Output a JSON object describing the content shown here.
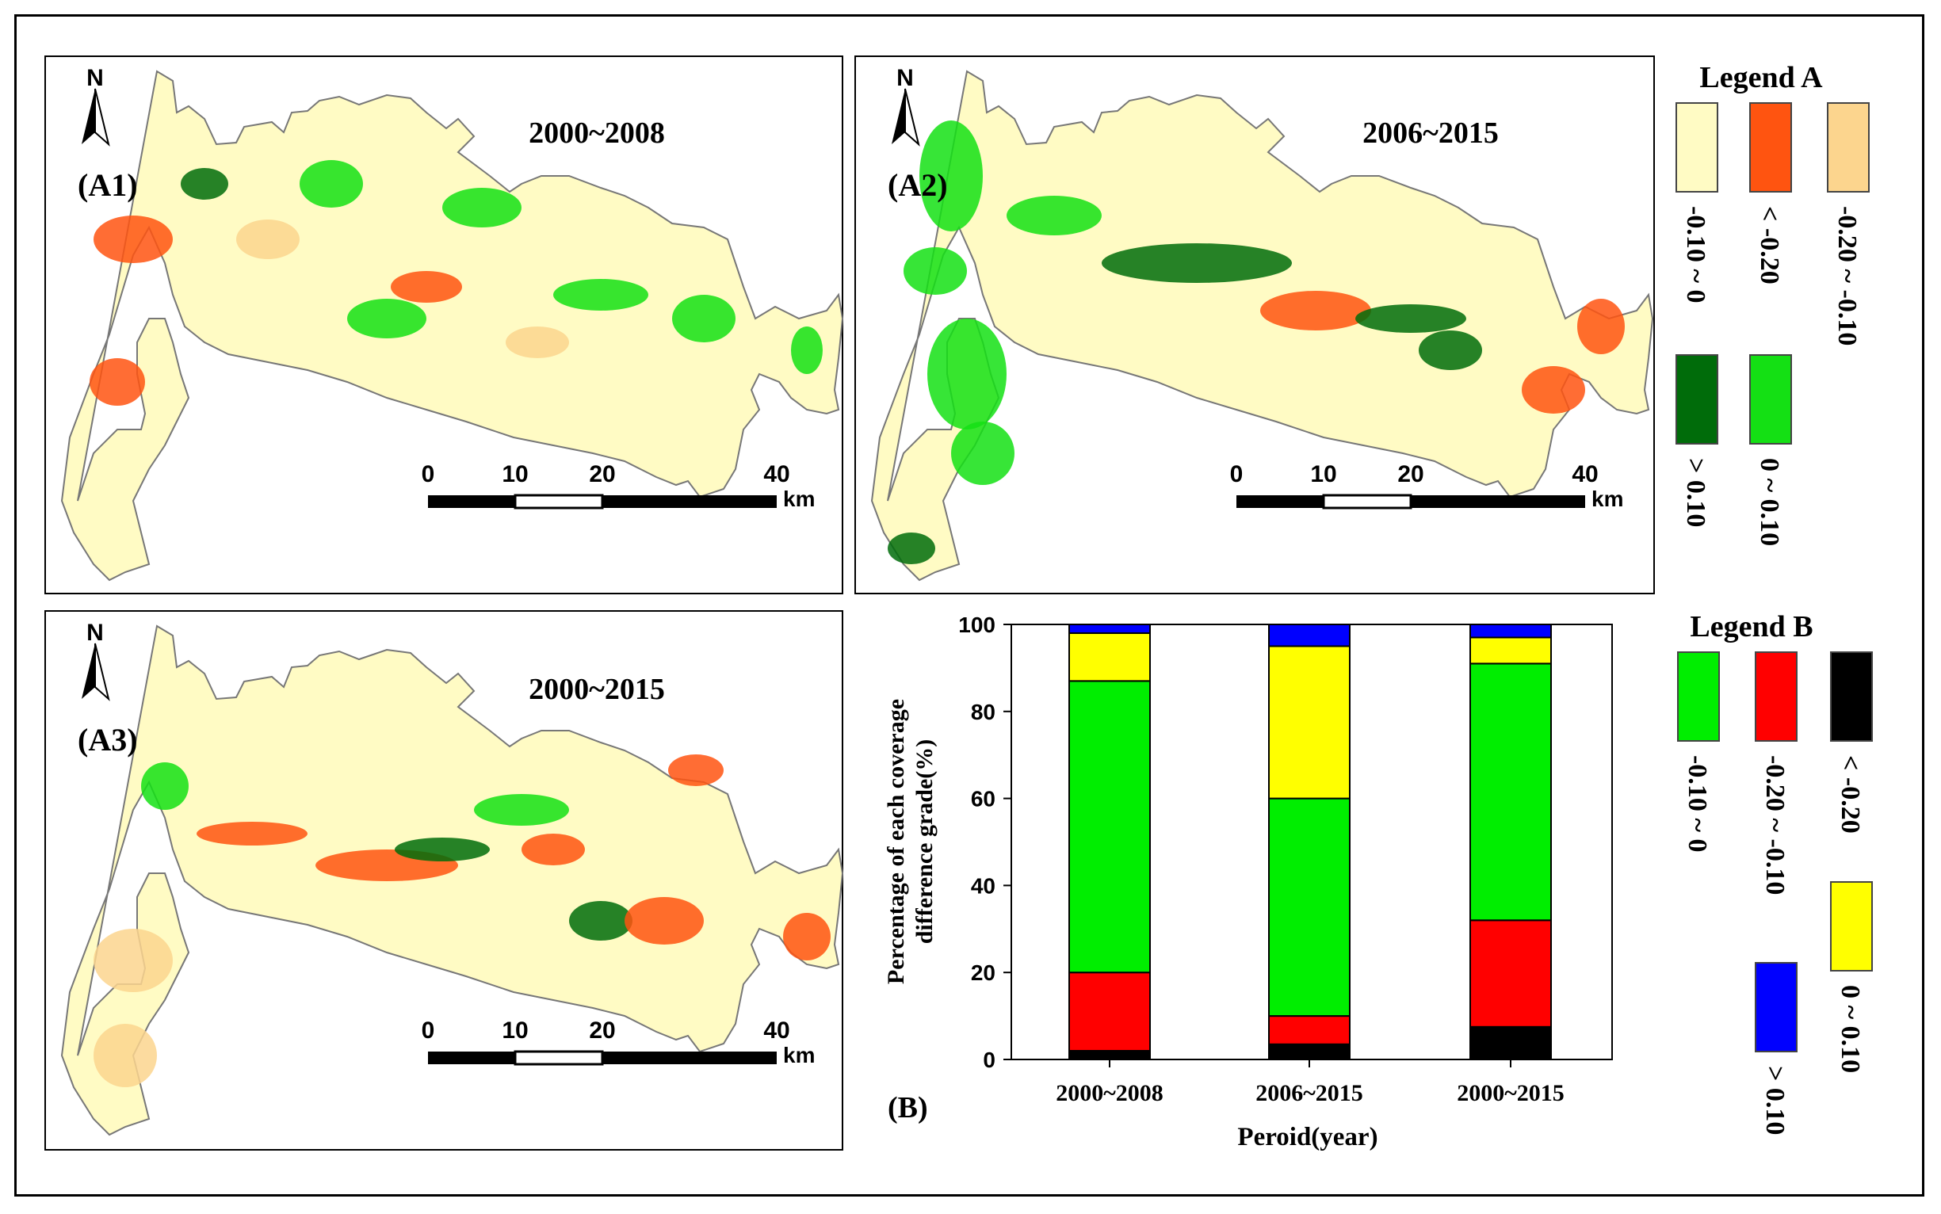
{
  "maps": [
    {
      "label": "(A1)",
      "period": "2000~2008"
    },
    {
      "label": "(A2)",
      "period": "2006~2015"
    },
    {
      "label": "(A3)",
      "period": "2000~2015"
    }
  ],
  "north_label": "N",
  "scale": {
    "ticks": [
      "0",
      "10",
      "20",
      "40"
    ],
    "unit": "km"
  },
  "legend_a": {
    "title": "Legend A",
    "items": [
      {
        "label": "-0.10 ~ 0",
        "color": "#FFFBC4"
      },
      {
        "label": "< -0.20",
        "color": "#FF5410"
      },
      {
        "label": "-0.20 ~ -0.10",
        "color": "#FCD58E"
      },
      {
        "label": "> 0.10",
        "color": "#006C0A"
      },
      {
        "label": "0 ~ 0.10",
        "color": "#14E014"
      }
    ]
  },
  "legend_b": {
    "title": "Legend B",
    "items": [
      {
        "label": "-0.10 ~ 0",
        "color": "#00EE00"
      },
      {
        "label": "-0.20 ~ -0.10",
        "color": "#FF0000"
      },
      {
        "label": "< -0.20",
        "color": "#000000"
      },
      {
        "label": "0 ~ 0.10",
        "color": "#FFFF00"
      },
      {
        "label": "> 0.10",
        "color": "#0000FF"
      }
    ]
  },
  "chart_data": {
    "type": "bar",
    "stacked": true,
    "panel_label": "(B)",
    "categories": [
      "2000~2008",
      "2006~2015",
      "2000~2015"
    ],
    "series": [
      {
        "name": "< -0.20",
        "color": "#000000",
        "values": [
          2,
          3.5,
          7.5
        ]
      },
      {
        "name": "-0.20 ~ -0.10",
        "color": "#FF0000",
        "values": [
          18,
          6.5,
          24.5
        ]
      },
      {
        "name": "-0.10 ~ 0",
        "color": "#00EE00",
        "values": [
          67,
          50,
          59
        ]
      },
      {
        "name": "0 ~ 0.10",
        "color": "#FFFF00",
        "values": [
          11,
          35,
          6
        ]
      },
      {
        "name": "> 0.10",
        "color": "#0000FF",
        "values": [
          2,
          5,
          3
        ]
      }
    ],
    "xlabel": "Peroid(year)",
    "ylabel": "Percentage of each coverage difference grade(%)",
    "ylim": [
      0,
      100
    ],
    "yticks": [
      0,
      20,
      40,
      60,
      80,
      100
    ]
  }
}
